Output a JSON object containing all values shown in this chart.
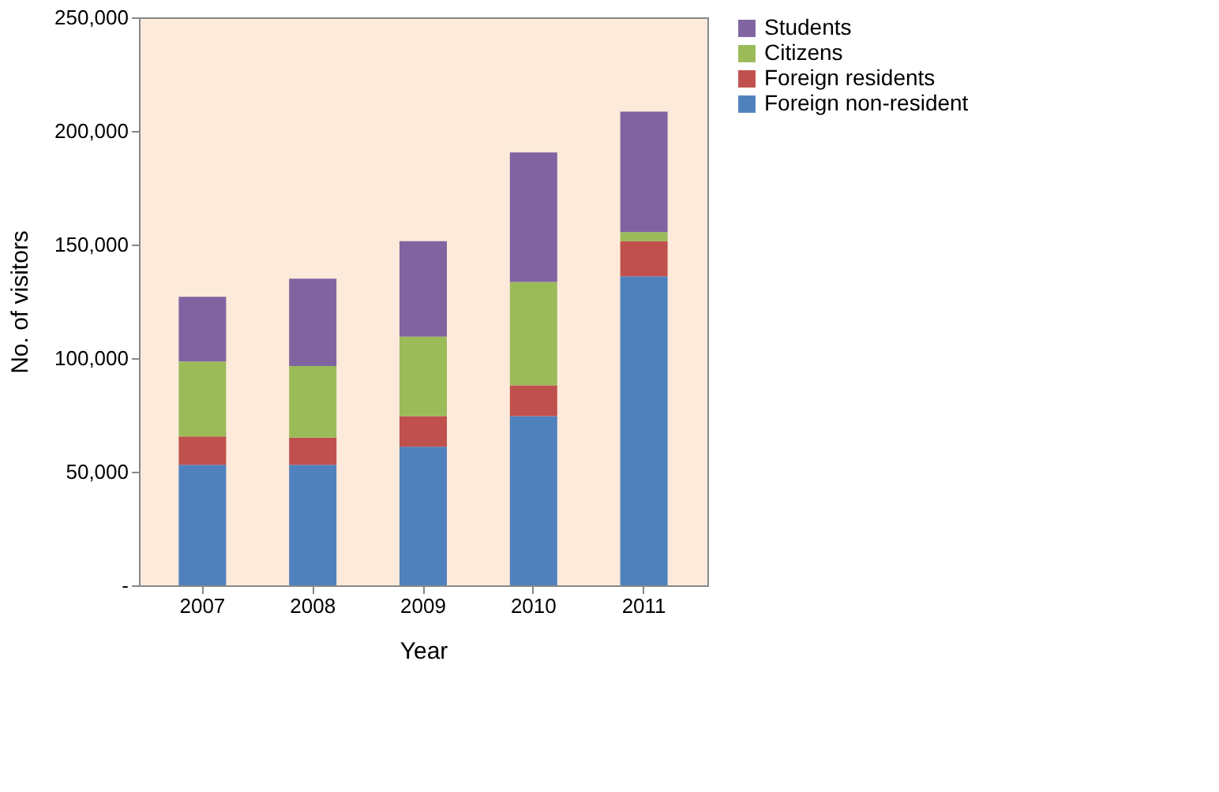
{
  "chart_data": {
    "type": "bar",
    "stacked": true,
    "xlabel": "Year",
    "ylabel": "No. of visitors",
    "categories": [
      "2007",
      "2008",
      "2009",
      "2010",
      "2011"
    ],
    "series": [
      {
        "name": "Foreign non-resident",
        "color": "#4f81bd",
        "values": [
          53000,
          53000,
          61000,
          74500,
          136000
        ]
      },
      {
        "name": "Foreign residents",
        "color": "#c0504d",
        "values": [
          12500,
          12000,
          13500,
          13500,
          15500
        ]
      },
      {
        "name": "Citizens",
        "color": "#9bbb59",
        "values": [
          33000,
          31500,
          35000,
          45500,
          4000
        ]
      },
      {
        "name": "Students",
        "color": "#8064a2",
        "values": [
          28500,
          38500,
          42000,
          57000,
          53000
        ]
      }
    ],
    "ylim": [
      0,
      250000
    ],
    "yticks": [
      {
        "value": 0,
        "label": "-"
      },
      {
        "value": 50000,
        "label": "50,000"
      },
      {
        "value": 100000,
        "label": "100,000"
      },
      {
        "value": 150000,
        "label": "150,000"
      },
      {
        "value": 200000,
        "label": "200,000"
      },
      {
        "value": 250000,
        "label": "250,000"
      }
    ],
    "grid": false,
    "legend": "right"
  }
}
